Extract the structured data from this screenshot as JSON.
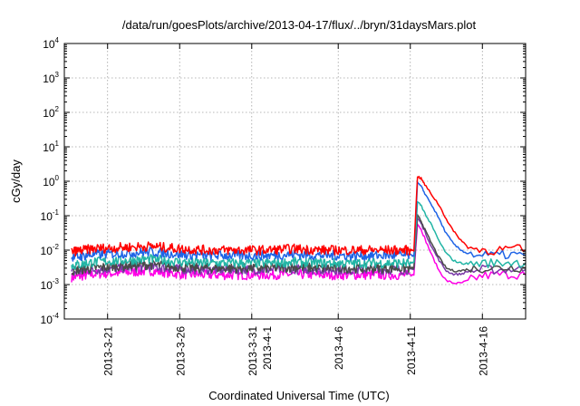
{
  "chart_data": {
    "type": "line",
    "title": "/data/run/goesPlots/archive/2013-04-17/flux/../bryn/31daysMars.plot",
    "xlabel": "Coordinated Universal Time (UTC)",
    "ylabel": "cGy/day",
    "y_scale": "log",
    "ylim": [
      0.0001,
      10000
    ],
    "xlim": [
      "2013-03-18T00:00",
      "2013-04-19T00:00"
    ],
    "grid": true,
    "legend": "none",
    "y_ticks": [
      {
        "base": "10",
        "exp": "-4"
      },
      {
        "base": "10",
        "exp": "-3"
      },
      {
        "base": "10",
        "exp": "-2"
      },
      {
        "base": "10",
        "exp": "-1"
      },
      {
        "base": "10",
        "exp": "0"
      },
      {
        "base": "10",
        "exp": "1"
      },
      {
        "base": "10",
        "exp": "2"
      },
      {
        "base": "10",
        "exp": "3"
      },
      {
        "base": "10",
        "exp": "4"
      }
    ],
    "x_ticks": [
      {
        "date": "2013-03-21",
        "lines": [
          "2013-3-21"
        ]
      },
      {
        "date": "2013-03-26",
        "lines": [
          "2013-3-26"
        ]
      },
      {
        "date": "2013-03-31",
        "lines": [
          "2013-3-31",
          "2013-4-1"
        ]
      },
      {
        "date": "2013-04-06",
        "lines": [
          "2013-4-6"
        ]
      },
      {
        "date": "2013-04-11",
        "lines": [
          "2013-4-11"
        ]
      },
      {
        "date": "2013-04-16",
        "lines": [
          "2013-4-16"
        ]
      }
    ],
    "x": [
      "2013-03-18T12:00",
      "2013-03-20T00:00",
      "2013-03-22T00:00",
      "2013-03-24T00:00",
      "2013-03-26T00:00",
      "2013-03-28T00:00",
      "2013-03-30T00:00",
      "2013-04-01T00:00",
      "2013-04-03T00:00",
      "2013-04-05T00:00",
      "2013-04-07T00:00",
      "2013-04-09T00:00",
      "2013-04-11T00:00",
      "2013-04-11T06:00",
      "2013-04-11T12:00",
      "2013-04-11T18:00",
      "2013-04-12T00:00",
      "2013-04-12T12:00",
      "2013-04-13T00:00",
      "2013-04-13T12:00",
      "2013-04-14T00:00",
      "2013-04-14T12:00",
      "2013-04-15T00:00",
      "2013-04-16T00:00",
      "2013-04-17T00:00",
      "2013-04-18T00:00",
      "2013-04-19T00:00"
    ],
    "series": [
      {
        "color": "#ff0000",
        "values": [
          0.009,
          0.011,
          0.012,
          0.013,
          0.011,
          0.01,
          0.01,
          0.01,
          0.011,
          0.01,
          0.01,
          0.01,
          0.01,
          0.01,
          1.4,
          1.2,
          0.8,
          0.4,
          0.2,
          0.08,
          0.035,
          0.02,
          0.012,
          0.01,
          0.01,
          0.011,
          0.01
        ]
      },
      {
        "color": "#1f64e6",
        "values": [
          0.006,
          0.0075,
          0.008,
          0.009,
          0.0075,
          0.007,
          0.007,
          0.007,
          0.0075,
          0.007,
          0.007,
          0.007,
          0.007,
          0.007,
          0.9,
          0.7,
          0.45,
          0.2,
          0.08,
          0.03,
          0.015,
          0.01,
          0.008,
          0.007,
          0.007,
          0.0075,
          0.007
        ]
      },
      {
        "color": "#22b5a5",
        "values": [
          0.0035,
          0.0045,
          0.005,
          0.0055,
          0.0045,
          0.0042,
          0.0042,
          0.0042,
          0.0045,
          0.0042,
          0.0042,
          0.0042,
          0.0042,
          0.0042,
          0.25,
          0.2,
          0.12,
          0.05,
          0.018,
          0.008,
          0.005,
          0.0042,
          0.004,
          0.0042,
          0.0042,
          0.0045,
          0.0042
        ]
      },
      {
        "color": "#4a4a4a",
        "values": [
          0.0025,
          0.003,
          0.0035,
          0.0038,
          0.0032,
          0.003,
          0.003,
          0.003,
          0.0032,
          0.003,
          0.003,
          0.003,
          0.003,
          0.003,
          0.1,
          0.07,
          0.04,
          0.015,
          0.006,
          0.003,
          0.0025,
          0.0025,
          0.0028,
          0.003,
          0.003,
          0.0032,
          0.003
        ]
      },
      {
        "color": "#7a3aa8",
        "values": [
          0.0022,
          0.0027,
          0.003,
          0.0033,
          0.0028,
          0.0027,
          0.0027,
          0.0027,
          0.0028,
          0.0027,
          0.0027,
          0.0027,
          0.0027,
          0.0027,
          0.085,
          0.06,
          0.035,
          0.012,
          0.005,
          0.0025,
          0.002,
          0.002,
          0.0024,
          0.0027,
          0.0027,
          0.0028,
          0.0027
        ]
      },
      {
        "color": "#ff00e6",
        "values": [
          0.0016,
          0.002,
          0.0022,
          0.0025,
          0.002,
          0.0019,
          0.0019,
          0.0019,
          0.002,
          0.0019,
          0.0019,
          0.0019,
          0.0019,
          0.0019,
          0.06,
          0.04,
          0.022,
          0.007,
          0.0025,
          0.0013,
          0.0011,
          0.0011,
          0.0013,
          0.0018,
          0.0019,
          0.002,
          0.0019
        ]
      }
    ]
  }
}
